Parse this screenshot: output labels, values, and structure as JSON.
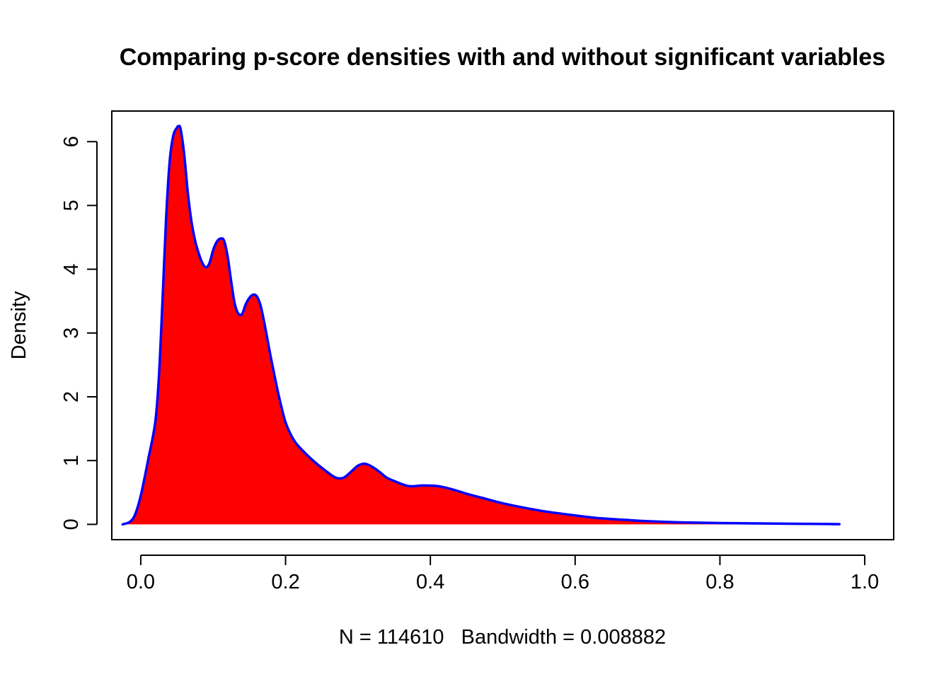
{
  "chart_data": {
    "type": "area",
    "title": "Comparing p-score densities with and without significant variables",
    "xlabel": "N = 114610   Bandwidth = 0.008882",
    "ylabel": "Density",
    "xlim": [
      -0.04,
      1.04
    ],
    "ylim": [
      -0.24,
      6.48
    ],
    "x_ticks": [
      0.0,
      0.2,
      0.4,
      0.6,
      0.8,
      1.0
    ],
    "x_tick_labels": [
      "0.0",
      "0.2",
      "0.4",
      "0.6",
      "0.8",
      "1.0"
    ],
    "y_ticks": [
      0,
      1,
      2,
      3,
      4,
      5,
      6
    ],
    "y_tick_labels": [
      "0",
      "1",
      "2",
      "3",
      "4",
      "5",
      "6"
    ],
    "grid": false,
    "series": [
      {
        "fill": "#ff0000",
        "x": [
          -0.025,
          -0.015,
          -0.008,
          0.0,
          0.01,
          0.02,
          0.025,
          0.03,
          0.035,
          0.04,
          0.045,
          0.05,
          0.052,
          0.055,
          0.06,
          0.065,
          0.07,
          0.075,
          0.08,
          0.085,
          0.09,
          0.095,
          0.1,
          0.105,
          0.11,
          0.115,
          0.12,
          0.125,
          0.13,
          0.135,
          0.14,
          0.145,
          0.15,
          0.155,
          0.16,
          0.165,
          0.17,
          0.175,
          0.18,
          0.19,
          0.2,
          0.21,
          0.22,
          0.24,
          0.26,
          0.27,
          0.28,
          0.29,
          0.3,
          0.31,
          0.32,
          0.33,
          0.34,
          0.35,
          0.37,
          0.39,
          0.41,
          0.43,
          0.45,
          0.47,
          0.5,
          0.53,
          0.56,
          0.6,
          0.63,
          0.67,
          0.7,
          0.75,
          0.8,
          0.85,
          0.9,
          0.95,
          0.965
        ],
        "y": [
          0.0,
          0.04,
          0.15,
          0.45,
          1.0,
          1.6,
          2.3,
          3.5,
          4.8,
          5.7,
          6.1,
          6.22,
          6.24,
          6.2,
          5.8,
          5.2,
          4.75,
          4.45,
          4.25,
          4.1,
          4.03,
          4.1,
          4.3,
          4.43,
          4.48,
          4.45,
          4.2,
          3.8,
          3.45,
          3.3,
          3.3,
          3.45,
          3.55,
          3.6,
          3.58,
          3.45,
          3.2,
          2.9,
          2.6,
          2.05,
          1.6,
          1.35,
          1.2,
          0.98,
          0.8,
          0.73,
          0.73,
          0.82,
          0.92,
          0.95,
          0.9,
          0.82,
          0.73,
          0.68,
          0.6,
          0.61,
          0.6,
          0.55,
          0.48,
          0.42,
          0.33,
          0.26,
          0.2,
          0.14,
          0.1,
          0.07,
          0.05,
          0.03,
          0.02,
          0.015,
          0.01,
          0.005,
          0.003
        ]
      }
    ],
    "colors": {
      "fill": "#ff0000",
      "line": "#0000ff",
      "axis": "#000000",
      "background": "#ffffff"
    }
  }
}
